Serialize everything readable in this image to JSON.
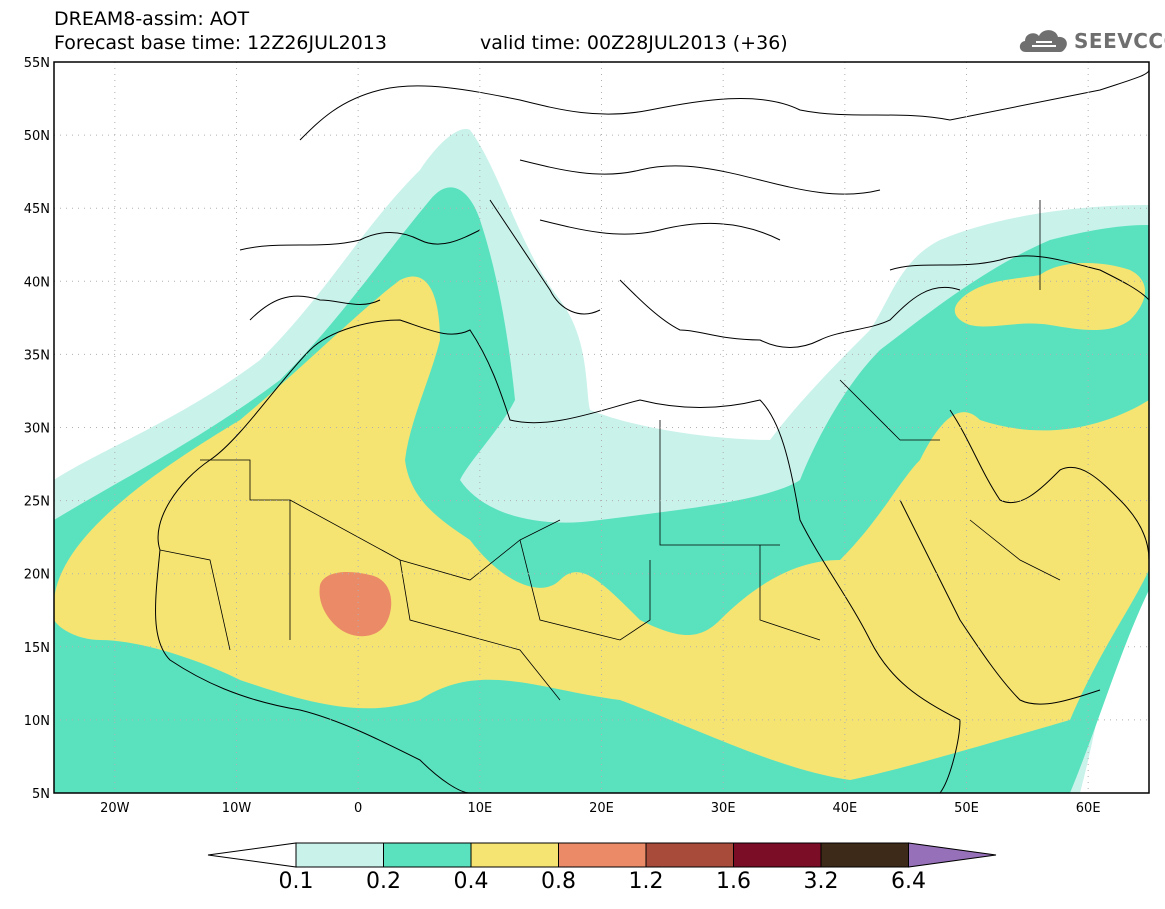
{
  "header": {
    "title": "DREAM8-assim: AOT",
    "base_time": "Forecast base time: 12Z26JUL2013",
    "valid_time": "valid time: 00Z28JUL2013 (+36)"
  },
  "logo": {
    "text": "SEEVCCC",
    "icon": "cloud-icon"
  },
  "map": {
    "lon_range": [
      -25,
      65
    ],
    "lat_range": [
      5,
      55
    ],
    "lat_ticks": [
      "55N",
      "50N",
      "45N",
      "40N",
      "35N",
      "30N",
      "25N",
      "20N",
      "15N",
      "10N",
      "5N"
    ],
    "lon_ticks": [
      "20W",
      "10W",
      "0",
      "10E",
      "20E",
      "30E",
      "40E",
      "50E",
      "60E"
    ]
  },
  "colorbar": {
    "levels": [
      "0.1",
      "0.2",
      "0.4",
      "0.8",
      "1.2",
      "1.6",
      "3.2",
      "6.4"
    ],
    "colors": [
      "#c9f2ea",
      "#5ae2bf",
      "#f5e472",
      "#eb8a66",
      "#a94b3a",
      "#7b0d26",
      "#3e2a19",
      "#9670b8"
    ],
    "under_color": "#ffffff"
  }
}
